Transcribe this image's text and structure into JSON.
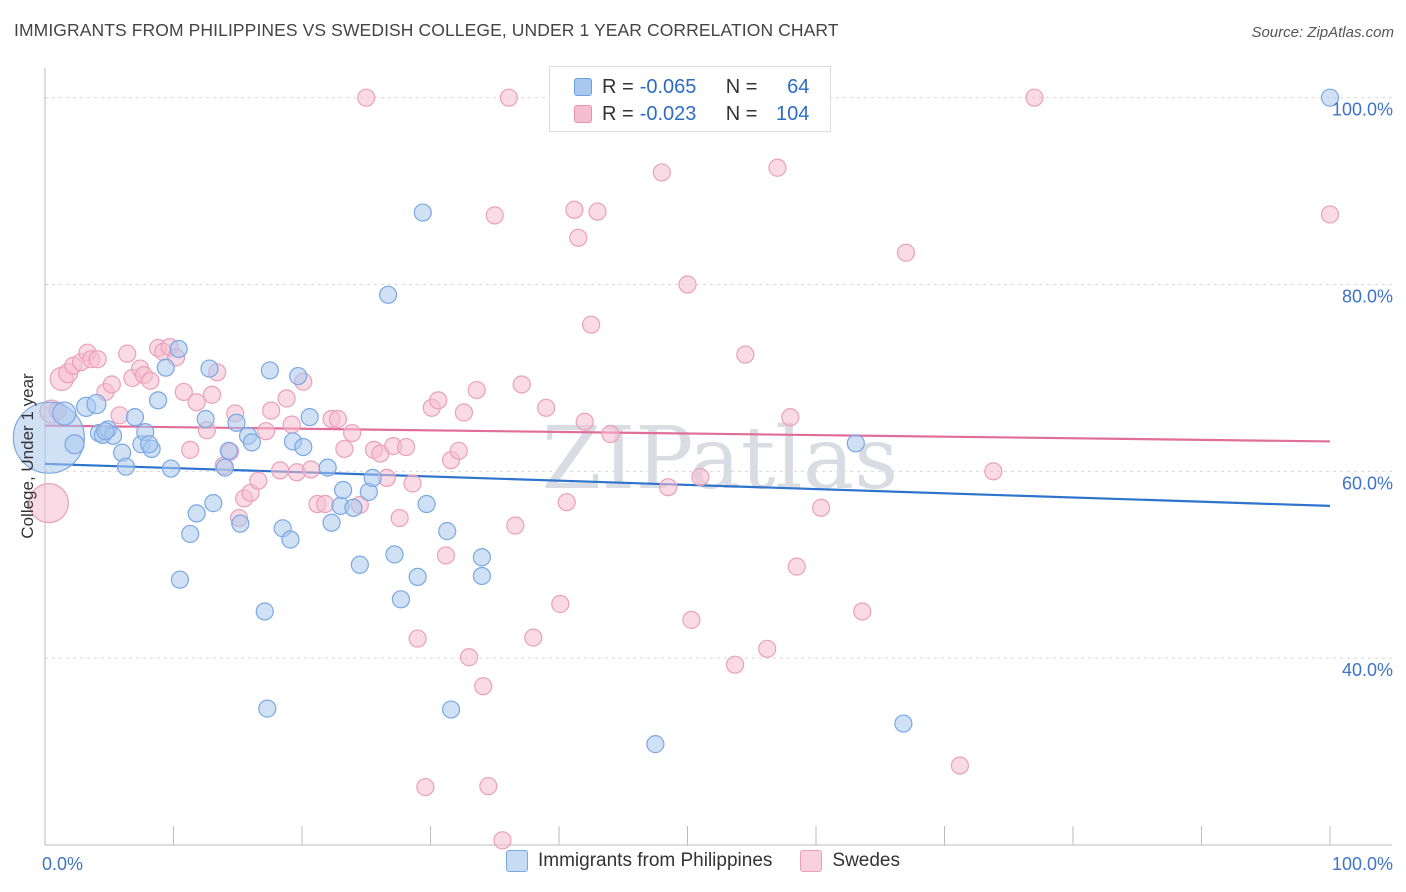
{
  "title": "IMMIGRANTS FROM PHILIPPINES VS SWEDISH COLLEGE, UNDER 1 YEAR CORRELATION CHART",
  "source": "Source: ZipAtlas.com",
  "watermark": "ZIPatlas",
  "legend": {
    "r_label": "R =",
    "n_label": "N =",
    "series": [
      {
        "name": "Immigrants from Philippines",
        "r": "-0.065",
        "n": "64",
        "color": "#a9c8ef",
        "edge": "#6b9fe0"
      },
      {
        "name": "Swedes",
        "r": "-0.023",
        "n": "104",
        "color": "#f6bdd0",
        "edge": "#e890b0"
      }
    ]
  },
  "chart_data": {
    "type": "scatter",
    "title": "IMMIGRANTS FROM PHILIPPINES VS SWEDISH COLLEGE, UNDER 1 YEAR CORRELATION CHART",
    "xlabel": "",
    "ylabel": "College, Under 1 year",
    "xlim": [
      0,
      100
    ],
    "ylim": [
      20,
      102
    ],
    "x_tick_labels": [
      "0.0%",
      "100.0%"
    ],
    "y_ticks": [
      40,
      60,
      80,
      100
    ],
    "y_tick_labels": [
      "40.0%",
      "60.0%",
      "80.0%",
      "100.0%"
    ],
    "grid": true,
    "legend_position": "top-center",
    "series": [
      {
        "name": "Immigrants from Philippines",
        "color": "#4a88d8",
        "trend": [
          [
            0,
            60.8
          ],
          [
            100,
            56.3
          ]
        ],
        "points": [
          [
            0.3,
            63.6
          ],
          [
            1.5,
            66.2
          ],
          [
            2.3,
            62.9
          ],
          [
            3.2,
            66.9
          ],
          [
            4.0,
            67.2
          ],
          [
            4.2,
            64.1
          ],
          [
            4.5,
            63.9
          ],
          [
            4.9,
            64.5
          ],
          [
            5.3,
            63.8
          ],
          [
            6.0,
            62.0
          ],
          [
            6.3,
            60.5
          ],
          [
            7.0,
            65.8
          ],
          [
            7.5,
            62.9
          ],
          [
            7.8,
            64.2
          ],
          [
            8.3,
            62.4
          ],
          [
            8.8,
            67.6
          ],
          [
            9.4,
            71.1
          ],
          [
            9.8,
            60.3
          ],
          [
            10.4,
            73.1
          ],
          [
            10.5,
            48.4
          ],
          [
            11.3,
            53.3
          ],
          [
            11.8,
            55.5
          ],
          [
            12.5,
            65.6
          ],
          [
            12.8,
            71.0
          ],
          [
            13.1,
            56.6
          ],
          [
            14.0,
            60.4
          ],
          [
            14.3,
            62.2
          ],
          [
            14.9,
            65.2
          ],
          [
            15.2,
            54.4
          ],
          [
            15.8,
            63.8
          ],
          [
            16.1,
            63.1
          ],
          [
            17.1,
            45.0
          ],
          [
            17.3,
            34.6
          ],
          [
            17.5,
            70.8
          ],
          [
            18.5,
            53.9
          ],
          [
            19.1,
            52.7
          ],
          [
            19.3,
            63.2
          ],
          [
            19.7,
            70.2
          ],
          [
            20.1,
            62.6
          ],
          [
            20.6,
            65.8
          ],
          [
            22.0,
            60.4
          ],
          [
            22.3,
            54.5
          ],
          [
            23.0,
            56.3
          ],
          [
            23.2,
            58.0
          ],
          [
            24.0,
            56.1
          ],
          [
            24.5,
            50.0
          ],
          [
            25.2,
            57.8
          ],
          [
            25.5,
            59.3
          ],
          [
            26.7,
            78.9
          ],
          [
            27.2,
            51.1
          ],
          [
            27.7,
            46.3
          ],
          [
            29.0,
            48.7
          ],
          [
            29.4,
            87.7
          ],
          [
            29.7,
            56.5
          ],
          [
            31.3,
            53.6
          ],
          [
            31.6,
            34.5
          ],
          [
            34.0,
            50.8
          ],
          [
            34.0,
            48.8
          ],
          [
            47.5,
            30.8
          ],
          [
            63.1,
            63.0
          ],
          [
            66.8,
            33.0
          ],
          [
            100.0,
            100.0
          ],
          [
            4.7,
            64.3
          ],
          [
            8.1,
            62.9
          ]
        ],
        "point_sizes": [
          38,
          14,
          12,
          12,
          12,
          11,
          11,
          11,
          11,
          11,
          11,
          11,
          11,
          11,
          11,
          11,
          11,
          11,
          11,
          11,
          11,
          11,
          11,
          11,
          11,
          11,
          11,
          11,
          11,
          11,
          11,
          11,
          11,
          11,
          11,
          11,
          11,
          11,
          11,
          11,
          11,
          11,
          11,
          11,
          11,
          11,
          11,
          11,
          11,
          11,
          11,
          11,
          11,
          11,
          11,
          11,
          11,
          11,
          11,
          11,
          11,
          11,
          11,
          11
        ]
      },
      {
        "name": "Swedes",
        "color": "#e07098",
        "trend": [
          [
            0,
            64.9
          ],
          [
            100,
            63.2
          ]
        ],
        "points": [
          [
            0.3,
            56.6
          ],
          [
            0.5,
            66.4
          ],
          [
            1.3,
            69.9
          ],
          [
            1.8,
            70.5
          ],
          [
            2.2,
            71.3
          ],
          [
            2.8,
            71.7
          ],
          [
            3.3,
            72.7
          ],
          [
            3.6,
            72.0
          ],
          [
            4.1,
            72.0
          ],
          [
            4.7,
            68.5
          ],
          [
            5.2,
            69.3
          ],
          [
            5.8,
            66.0
          ],
          [
            6.4,
            72.6
          ],
          [
            6.8,
            70.0
          ],
          [
            7.4,
            71.0
          ],
          [
            7.7,
            70.3
          ],
          [
            8.2,
            69.7
          ],
          [
            8.8,
            73.2
          ],
          [
            9.2,
            72.8
          ],
          [
            9.7,
            73.3
          ],
          [
            10.2,
            72.2
          ],
          [
            10.8,
            68.5
          ],
          [
            11.3,
            62.3
          ],
          [
            11.8,
            67.4
          ],
          [
            12.6,
            64.4
          ],
          [
            13.0,
            68.2
          ],
          [
            13.4,
            70.6
          ],
          [
            13.9,
            60.6
          ],
          [
            14.4,
            62.1
          ],
          [
            14.8,
            66.2
          ],
          [
            15.1,
            55.0
          ],
          [
            15.5,
            57.1
          ],
          [
            16.0,
            57.7
          ],
          [
            16.6,
            59.0
          ],
          [
            17.2,
            64.3
          ],
          [
            17.6,
            66.5
          ],
          [
            18.3,
            60.1
          ],
          [
            18.8,
            67.8
          ],
          [
            19.2,
            65.0
          ],
          [
            19.6,
            59.9
          ],
          [
            20.1,
            69.6
          ],
          [
            20.7,
            60.2
          ],
          [
            21.2,
            56.5
          ],
          [
            21.8,
            56.5
          ],
          [
            22.3,
            65.6
          ],
          [
            22.8,
            65.6
          ],
          [
            23.3,
            62.4
          ],
          [
            23.9,
            64.1
          ],
          [
            24.5,
            56.4
          ],
          [
            25.0,
            100.0
          ],
          [
            25.6,
            62.3
          ],
          [
            26.1,
            61.9
          ],
          [
            26.6,
            59.3
          ],
          [
            27.1,
            62.7
          ],
          [
            27.6,
            55.0
          ],
          [
            28.1,
            62.6
          ],
          [
            28.6,
            58.7
          ],
          [
            29.0,
            42.1
          ],
          [
            29.6,
            26.2
          ],
          [
            30.1,
            66.8
          ],
          [
            30.6,
            67.6
          ],
          [
            31.2,
            51.0
          ],
          [
            31.6,
            61.2
          ],
          [
            32.2,
            62.2
          ],
          [
            32.6,
            66.3
          ],
          [
            33.0,
            40.1
          ],
          [
            33.6,
            68.7
          ],
          [
            34.1,
            37.0
          ],
          [
            34.5,
            26.3
          ],
          [
            35.0,
            87.4
          ],
          [
            35.6,
            20.5
          ],
          [
            36.1,
            100.0
          ],
          [
            36.6,
            54.2
          ],
          [
            37.1,
            69.3
          ],
          [
            38.0,
            42.2
          ],
          [
            39.0,
            66.8
          ],
          [
            40.1,
            45.8
          ],
          [
            40.6,
            56.7
          ],
          [
            41.2,
            88.0
          ],
          [
            41.5,
            85.0
          ],
          [
            42.0,
            65.3
          ],
          [
            42.5,
            75.7
          ],
          [
            43.0,
            87.8
          ],
          [
            44.0,
            64.0
          ],
          [
            46.5,
            100.0
          ],
          [
            48.0,
            92.0
          ],
          [
            48.5,
            58.3
          ],
          [
            50.0,
            80.0
          ],
          [
            50.3,
            44.1
          ],
          [
            51.0,
            59.4
          ],
          [
            53.7,
            39.3
          ],
          [
            54.5,
            72.5
          ],
          [
            56.2,
            41.0
          ],
          [
            57.0,
            92.5
          ],
          [
            58.0,
            65.8
          ],
          [
            58.5,
            49.8
          ],
          [
            60.4,
            56.1
          ],
          [
            63.6,
            45.0
          ],
          [
            67.0,
            83.4
          ],
          [
            71.2,
            28.5
          ],
          [
            73.8,
            60.0
          ],
          [
            77.0,
            100.0
          ],
          [
            100.0,
            87.5
          ],
          [
            1.0,
            66.5
          ]
        ],
        "point_sizes": [
          22,
          14,
          14,
          12,
          11,
          11,
          11,
          11,
          11,
          11,
          11,
          11,
          11,
          11,
          11,
          11,
          11,
          11,
          11,
          11,
          11,
          11,
          11,
          11,
          11,
          11,
          11,
          11,
          11,
          11,
          11,
          11,
          11,
          11,
          11,
          11,
          11,
          11,
          11,
          11,
          11,
          11,
          11,
          11,
          11,
          11,
          11,
          11,
          11,
          11,
          11,
          11,
          11,
          11,
          11,
          11,
          11,
          11,
          11,
          11,
          11,
          11,
          11,
          11,
          11,
          11,
          11,
          11,
          11,
          11,
          11,
          11,
          11,
          11,
          11,
          11,
          11,
          11,
          11,
          11,
          11,
          11,
          11,
          11,
          11,
          11,
          11,
          11,
          11,
          11,
          11,
          11,
          11,
          11,
          11,
          11,
          11,
          11,
          11,
          11,
          11,
          11,
          11,
          11
        ]
      }
    ]
  }
}
